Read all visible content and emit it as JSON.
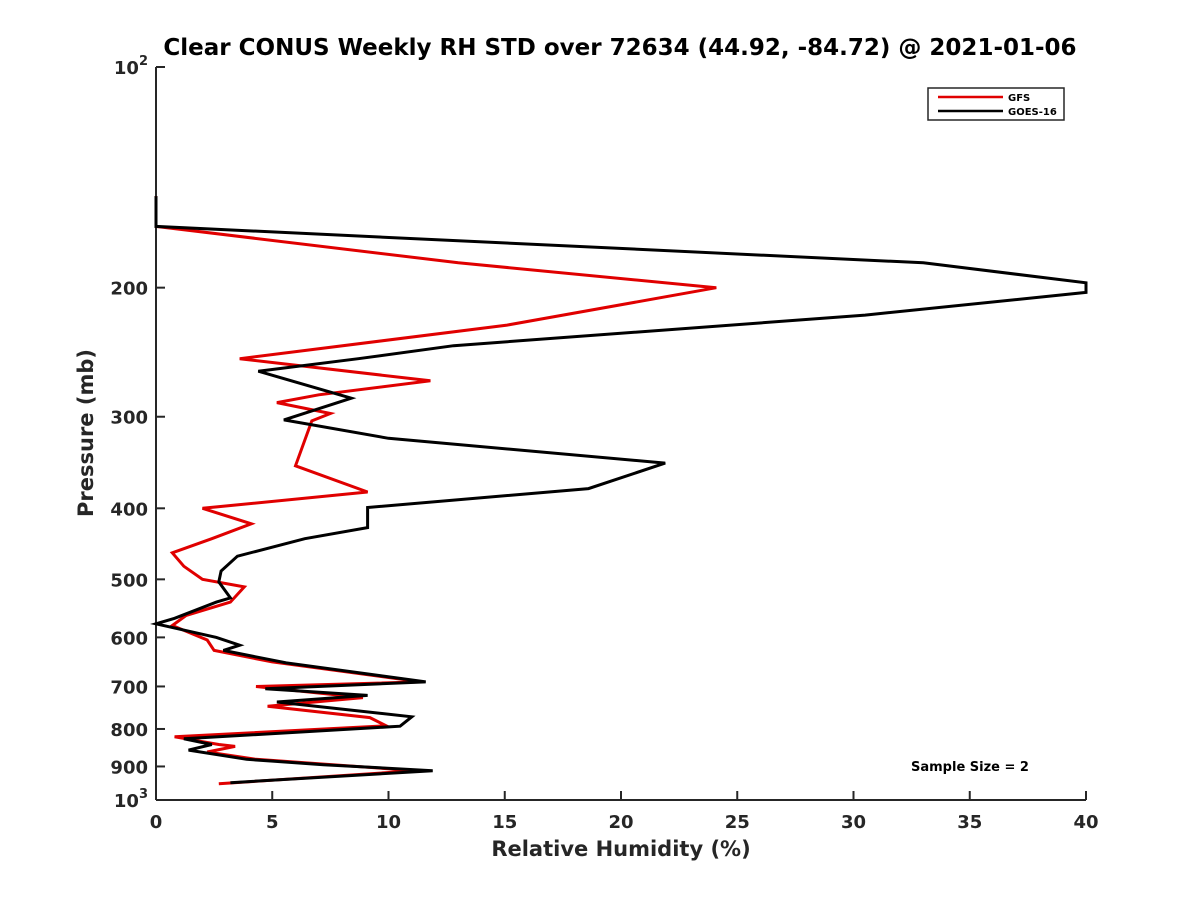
{
  "chart_data": {
    "type": "line",
    "title": "Clear CONUS Weekly RH STD over 72634 (44.92, -84.72) @ 2021-01-06",
    "xlabel": "Relative Humidity (%)",
    "ylabel": "Pressure (mb)",
    "xlim": [
      0,
      40
    ],
    "ylim": [
      100,
      1000
    ],
    "yscale": "log",
    "yreverse": true,
    "x_ticks": [
      0,
      5,
      10,
      15,
      20,
      25,
      30,
      35,
      40
    ],
    "x_tick_labels": [
      "0",
      "5",
      "10",
      "15",
      "20",
      "25",
      "30",
      "35",
      "40"
    ],
    "y_ticks": [
      100,
      200,
      300,
      400,
      500,
      600,
      700,
      800,
      900,
      1000
    ],
    "y_tick_labels": [
      {
        "base": "10",
        "exp": "2"
      },
      {
        "base": "200",
        "exp": ""
      },
      {
        "base": "300",
        "exp": ""
      },
      {
        "base": "400",
        "exp": ""
      },
      {
        "base": "500",
        "exp": ""
      },
      {
        "base": "600",
        "exp": ""
      },
      {
        "base": "700",
        "exp": ""
      },
      {
        "base": "800",
        "exp": ""
      },
      {
        "base": "900",
        "exp": ""
      },
      {
        "base": "10",
        "exp": "3"
      }
    ],
    "legend": {
      "location": "top-right",
      "entries": [
        "GFS",
        "GOES-16"
      ]
    },
    "annotation": "Sample Size = 2",
    "series": [
      {
        "name": "GFS",
        "color": "#e00000",
        "points": [
          [
            0,
            150
          ],
          [
            0,
            165
          ],
          [
            13,
            185
          ],
          [
            24.1,
            200
          ],
          [
            15.1,
            225
          ],
          [
            3.6,
            250
          ],
          [
            11.8,
            268
          ],
          [
            7,
            280
          ],
          [
            5.2,
            287
          ],
          [
            7.5,
            297
          ],
          [
            6.7,
            304
          ],
          [
            6.0,
            350
          ],
          [
            9.1,
            380
          ],
          [
            2.0,
            400
          ],
          [
            4.1,
            420
          ],
          [
            2.4,
            440
          ],
          [
            0.7,
            460
          ],
          [
            1.2,
            480
          ],
          [
            2.0,
            500
          ],
          [
            3.8,
            512
          ],
          [
            3.2,
            537
          ],
          [
            1.3,
            560
          ],
          [
            0.7,
            578
          ],
          [
            2.2,
            605
          ],
          [
            2.5,
            625
          ],
          [
            5.0,
            648
          ],
          [
            11.4,
            690
          ],
          [
            4.3,
            700
          ],
          [
            8.9,
            725
          ],
          [
            4.8,
            745
          ],
          [
            9.2,
            772
          ],
          [
            9.9,
            792
          ],
          [
            0.8,
            820
          ],
          [
            2.7,
            840
          ],
          [
            3.4,
            845
          ],
          [
            2.2,
            860
          ],
          [
            4.3,
            880
          ],
          [
            11.2,
            912
          ],
          [
            2.7,
            950
          ]
        ]
      },
      {
        "name": "GOES-16",
        "color": "#000000",
        "points": [
          [
            0,
            150
          ],
          [
            0,
            165
          ],
          [
            33.0,
            185
          ],
          [
            40,
            197
          ],
          [
            40,
            203
          ],
          [
            30.5,
            218
          ],
          [
            12.8,
            240
          ],
          [
            8.7,
            250
          ],
          [
            4.4,
            260
          ],
          [
            8.4,
            283
          ],
          [
            5.5,
            303
          ],
          [
            10.0,
            321
          ],
          [
            21.9,
            347
          ],
          [
            18.6,
            376
          ],
          [
            9.1,
            399
          ],
          [
            9.1,
            425
          ],
          [
            6.4,
            440
          ],
          [
            3.5,
            465
          ],
          [
            2.8,
            487
          ],
          [
            2.7,
            504
          ],
          [
            3.2,
            530
          ],
          [
            2.6,
            537
          ],
          [
            0.8,
            565
          ],
          [
            0,
            575
          ],
          [
            2.6,
            600
          ],
          [
            3.6,
            615
          ],
          [
            2.9,
            625
          ],
          [
            5.6,
            650
          ],
          [
            11.6,
            690
          ],
          [
            4.7,
            705
          ],
          [
            9.1,
            720
          ],
          [
            5.2,
            735
          ],
          [
            11.0,
            770
          ],
          [
            10.5,
            793
          ],
          [
            1.2,
            825
          ],
          [
            2.4,
            840
          ],
          [
            1.4,
            855
          ],
          [
            3.9,
            880
          ],
          [
            7.2,
            895
          ],
          [
            11.9,
            912
          ],
          [
            3.2,
            947
          ]
        ]
      }
    ]
  }
}
